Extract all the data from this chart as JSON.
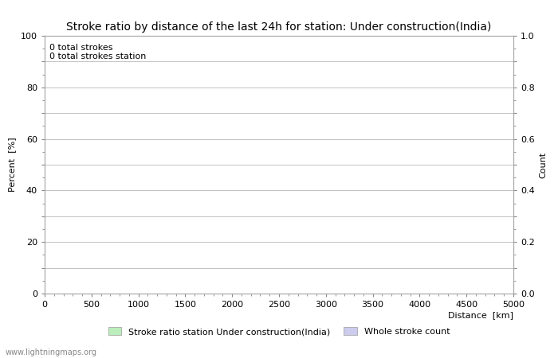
{
  "title": "Stroke ratio by distance of the last 24h for station: Under construction(India)",
  "xlabel": "Distance  [km]",
  "ylabel_left": "Percent  [%]",
  "ylabel_right": "Count",
  "annotation_line1": "0 total strokes",
  "annotation_line2": "0 total strokes station",
  "xlim": [
    0,
    5000
  ],
  "ylim_left": [
    0,
    100
  ],
  "ylim_right": [
    0,
    1.0
  ],
  "xticks": [
    0,
    500,
    1000,
    1500,
    2000,
    2500,
    3000,
    3500,
    4000,
    4500,
    5000
  ],
  "yticks_left": [
    0,
    10,
    20,
    30,
    40,
    50,
    60,
    70,
    80,
    90,
    100
  ],
  "yticks_right": [
    0.0,
    0.1,
    0.2,
    0.3,
    0.4,
    0.5,
    0.6,
    0.7,
    0.8,
    0.9,
    1.0
  ],
  "ytick_labels_left": [
    "0",
    "",
    "20",
    "",
    "40",
    "",
    "60",
    "",
    "80",
    "",
    "100"
  ],
  "ytick_labels_right": [
    "0.0",
    "",
    "0.2",
    "",
    "0.4",
    "",
    "0.6",
    "",
    "0.8",
    "",
    "1.0"
  ],
  "grid_color": "#aaaaaa",
  "background_color": "#ffffff",
  "legend_label_1": "Stroke ratio station Under construction(India)",
  "legend_label_2": "Whole stroke count",
  "legend_color_1": "#bbeebb",
  "legend_color_2": "#ccccee",
  "title_fontsize": 10,
  "axis_fontsize": 8,
  "tick_fontsize": 8,
  "annotation_fontsize": 8,
  "watermark": "www.lightningmaps.org",
  "watermark_fontsize": 7
}
